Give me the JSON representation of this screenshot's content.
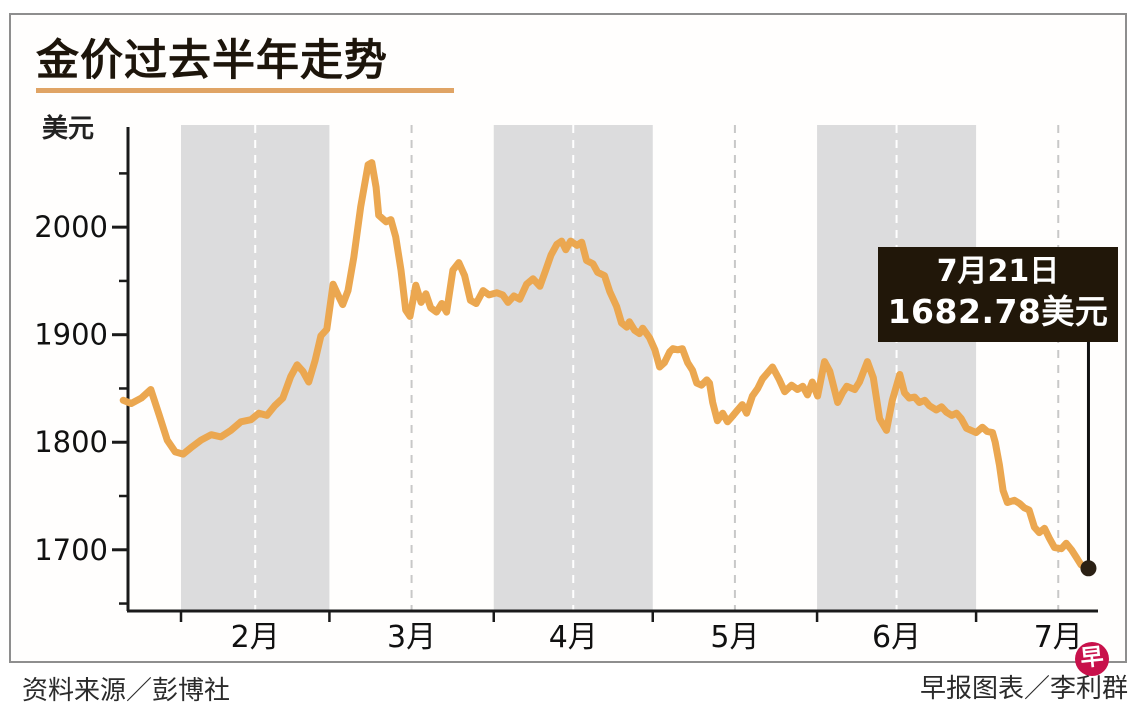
{
  "header": {
    "title": "金价过去半年走势",
    "y_unit_label": "美元"
  },
  "annotation": {
    "line1": "7月21日",
    "line2": "1682.78美元"
  },
  "footer": {
    "source": "资料来源／彭博社",
    "credit": "早报图表／李利群",
    "logo_char": "早"
  },
  "colors": {
    "title_underline": "#e0a465",
    "price_line": "#ebA750",
    "band_gray": "#dcdcdd",
    "dash_on_band": "#ffffff",
    "dash_on_white": "#c8c8c8",
    "axis": "#1a1a1a",
    "tick_label": "#111111",
    "annotation_bg": "#211709",
    "pointer_line": "#111111",
    "end_dot": "#2b2014",
    "logo_red": "#c8114b"
  },
  "chart_data": {
    "type": "line",
    "title": "金价过去半年走势",
    "xlabel": "",
    "ylabel": "美元",
    "legend": "none",
    "grid": "vertical dashed mid-month lines; alternating month shading (2月,4月,6月)",
    "ylim": [
      1644,
      2095
    ],
    "xlim_days": [
      22,
      205
    ],
    "y_major_ticks": [
      2000,
      1900,
      1800,
      1700
    ],
    "y_minor_ticks": [
      2050,
      1950,
      1850,
      1750,
      1650
    ],
    "month_labels": [
      "2月",
      "3月",
      "4月",
      "5月",
      "6月",
      "7月"
    ],
    "month_label_days": [
      46,
      75.5,
      106,
      136.5,
      167,
      197.5
    ],
    "month_boundary_days": [
      32,
      60,
      91,
      121,
      152,
      182
    ],
    "shaded_month_day_ranges": [
      [
        32,
        60
      ],
      [
        91,
        121
      ],
      [
        152,
        182
      ]
    ],
    "dashed_mid_month_days": [
      46,
      75.5,
      106,
      136.5,
      167,
      197.5
    ],
    "last_point": {
      "date_label": "7月21日",
      "value": 1682.78
    },
    "points": [
      [
        21.1,
        1839
      ],
      [
        22.6,
        1836
      ],
      [
        24.5,
        1841
      ],
      [
        26.3,
        1849
      ],
      [
        27.9,
        1825
      ],
      [
        29.4,
        1802
      ],
      [
        30.9,
        1791
      ],
      [
        32.4,
        1789
      ],
      [
        33.9,
        1795
      ],
      [
        35.8,
        1802
      ],
      [
        37.7,
        1807
      ],
      [
        39.5,
        1805
      ],
      [
        41.4,
        1811
      ],
      [
        43.3,
        1819
      ],
      [
        45.2,
        1821
      ],
      [
        46.7,
        1827
      ],
      [
        48.2,
        1825
      ],
      [
        49.7,
        1834
      ],
      [
        51.2,
        1841
      ],
      [
        52.7,
        1861
      ],
      [
        53.9,
        1872
      ],
      [
        55.0,
        1866
      ],
      [
        56.1,
        1856
      ],
      [
        57.3,
        1876
      ],
      [
        58.4,
        1899
      ],
      [
        59.5,
        1905
      ],
      [
        60.7,
        1947
      ],
      [
        61.8,
        1935
      ],
      [
        62.5,
        1928
      ],
      [
        63.5,
        1941
      ],
      [
        64.6,
        1972
      ],
      [
        65.9,
        2019
      ],
      [
        67.3,
        2058
      ],
      [
        68.0,
        2060
      ],
      [
        68.8,
        2037
      ],
      [
        69.3,
        2011
      ],
      [
        70.7,
        2005
      ],
      [
        71.6,
        2007
      ],
      [
        72.5,
        1991
      ],
      [
        73.5,
        1960
      ],
      [
        74.4,
        1923
      ],
      [
        75.2,
        1917
      ],
      [
        76.3,
        1946
      ],
      [
        77.3,
        1930
      ],
      [
        78.2,
        1938
      ],
      [
        79.1,
        1925
      ],
      [
        80.2,
        1921
      ],
      [
        81.2,
        1929
      ],
      [
        82.1,
        1921
      ],
      [
        83.3,
        1960
      ],
      [
        84.4,
        1967
      ],
      [
        85.5,
        1955
      ],
      [
        86.6,
        1932
      ],
      [
        87.7,
        1929
      ],
      [
        89.0,
        1941
      ],
      [
        90.1,
        1937
      ],
      [
        91.6,
        1939
      ],
      [
        92.7,
        1937
      ],
      [
        93.7,
        1930
      ],
      [
        94.8,
        1936
      ],
      [
        95.9,
        1933
      ],
      [
        97.2,
        1947
      ],
      [
        98.4,
        1952
      ],
      [
        99.7,
        1945
      ],
      [
        100.8,
        1960
      ],
      [
        101.8,
        1974
      ],
      [
        102.9,
        1984
      ],
      [
        103.8,
        1987
      ],
      [
        104.6,
        1979
      ],
      [
        105.5,
        1987
      ],
      [
        106.7,
        1983
      ],
      [
        107.6,
        1986
      ],
      [
        108.5,
        1969
      ],
      [
        109.7,
        1966
      ],
      [
        110.6,
        1958
      ],
      [
        111.9,
        1955
      ],
      [
        112.9,
        1940
      ],
      [
        114.2,
        1926
      ],
      [
        115.1,
        1911
      ],
      [
        116.1,
        1907
      ],
      [
        116.6,
        1912
      ],
      [
        117.6,
        1904
      ],
      [
        118.5,
        1901
      ],
      [
        119.1,
        1906
      ],
      [
        120.4,
        1897
      ],
      [
        121.4,
        1886
      ],
      [
        122.3,
        1870
      ],
      [
        123.2,
        1874
      ],
      [
        124.2,
        1884
      ],
      [
        124.8,
        1887
      ],
      [
        125.7,
        1886
      ],
      [
        126.6,
        1887
      ],
      [
        127.6,
        1874
      ],
      [
        128.5,
        1867
      ],
      [
        129.3,
        1855
      ],
      [
        130.2,
        1853
      ],
      [
        131.2,
        1858
      ],
      [
        131.7,
        1855
      ],
      [
        132.3,
        1837
      ],
      [
        133.2,
        1820
      ],
      [
        134.2,
        1827
      ],
      [
        135.1,
        1819
      ],
      [
        136.0,
        1824
      ],
      [
        137.0,
        1830
      ],
      [
        137.9,
        1835
      ],
      [
        138.7,
        1827
      ],
      [
        139.8,
        1843
      ],
      [
        140.8,
        1850
      ],
      [
        141.7,
        1859
      ],
      [
        143.6,
        1870
      ],
      [
        144.9,
        1858
      ],
      [
        145.9,
        1847
      ],
      [
        147.2,
        1853
      ],
      [
        148.3,
        1849
      ],
      [
        149.3,
        1852
      ],
      [
        150.2,
        1844
      ],
      [
        151.1,
        1856
      ],
      [
        152.1,
        1843
      ],
      [
        153.4,
        1875
      ],
      [
        154.4,
        1866
      ],
      [
        155.9,
        1837
      ],
      [
        156.8,
        1846
      ],
      [
        157.6,
        1852
      ],
      [
        159.1,
        1849
      ],
      [
        160.0,
        1856
      ],
      [
        161.5,
        1875
      ],
      [
        162.6,
        1860
      ],
      [
        163.8,
        1822
      ],
      [
        165.1,
        1811
      ],
      [
        166.2,
        1839
      ],
      [
        167.6,
        1863
      ],
      [
        168.5,
        1846
      ],
      [
        169.4,
        1841
      ],
      [
        170.4,
        1842
      ],
      [
        171.3,
        1837
      ],
      [
        172.3,
        1839
      ],
      [
        173.2,
        1834
      ],
      [
        174.5,
        1830
      ],
      [
        175.5,
        1833
      ],
      [
        176.4,
        1828
      ],
      [
        177.4,
        1825
      ],
      [
        178.3,
        1827
      ],
      [
        179.2,
        1822
      ],
      [
        180.2,
        1813
      ],
      [
        181.1,
        1811
      ],
      [
        182.0,
        1809
      ],
      [
        183.2,
        1814
      ],
      [
        184.1,
        1810
      ],
      [
        185.1,
        1809
      ],
      [
        185.6,
        1800
      ],
      [
        186.4,
        1779
      ],
      [
        187.1,
        1755
      ],
      [
        187.9,
        1744
      ],
      [
        189.2,
        1746
      ],
      [
        190.2,
        1743
      ],
      [
        191.1,
        1739
      ],
      [
        192.0,
        1737
      ],
      [
        193.0,
        1721
      ],
      [
        193.9,
        1716
      ],
      [
        194.9,
        1720
      ],
      [
        195.8,
        1711
      ],
      [
        196.8,
        1702
      ],
      [
        198.1,
        1701
      ],
      [
        199.0,
        1706
      ],
      [
        200.0,
        1700
      ],
      [
        200.9,
        1693
      ],
      [
        201.8,
        1686
      ],
      [
        203.2,
        1682.78
      ]
    ]
  }
}
